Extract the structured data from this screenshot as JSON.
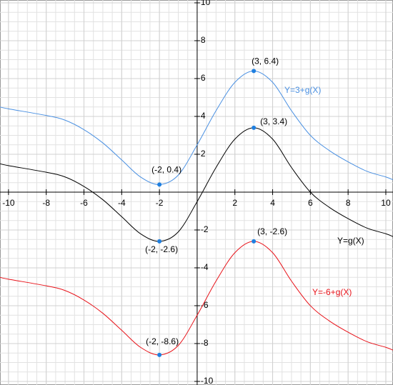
{
  "chart_data": {
    "type": "line",
    "xlim": [
      -10.45,
      10.38
    ],
    "ylim": [
      -10.19,
      10.15
    ],
    "xticks": [
      -10,
      -8,
      -6,
      -4,
      -2,
      2,
      4,
      6,
      8,
      10
    ],
    "yticks": [
      -10,
      -8,
      -6,
      -4,
      -2,
      2,
      4,
      6,
      8,
      10
    ],
    "grid": true,
    "point_color": "#1e7fe0",
    "series": [
      {
        "name": "Y=3+g(X)",
        "color": "#4a90e2",
        "x": [
          -10.45,
          -10,
          -8,
          -7,
          -6,
          -5,
          -4,
          -3,
          -2,
          -1,
          0,
          1,
          2,
          3,
          4,
          5,
          6,
          7,
          8,
          9,
          10,
          10.38
        ],
        "values": [
          4.5,
          4.4,
          4.05,
          3.8,
          3.3,
          2.6,
          1.7,
          0.8,
          0.4,
          0.9,
          2.5,
          4.3,
          5.8,
          6.4,
          5.8,
          4.3,
          3.0,
          2.2,
          1.6,
          1.1,
          0.8,
          0.65
        ],
        "points": {
          "x": [
            -2,
            3
          ],
          "values": [
            0.4,
            6.4
          ],
          "labels": [
            "(-2, 0.4)",
            "(3, 6.4)"
          ]
        }
      },
      {
        "name": "Y=g(X)",
        "color": "#000000",
        "x": [
          -10.45,
          -10,
          -8,
          -7,
          -6,
          -5,
          -4,
          -3,
          -2,
          -1,
          0,
          1,
          2,
          3,
          4,
          5,
          6,
          7,
          8,
          9,
          10,
          10.38
        ],
        "values": [
          1.5,
          1.4,
          1.05,
          0.8,
          0.3,
          -0.4,
          -1.3,
          -2.2,
          -2.6,
          -2.1,
          -0.5,
          1.3,
          2.8,
          3.4,
          2.8,
          1.3,
          0.0,
          -0.8,
          -1.4,
          -1.9,
          -2.2,
          -2.35
        ],
        "points": {
          "x": [
            -2,
            3
          ],
          "values": [
            -2.6,
            3.4
          ],
          "labels": [
            "(-2, -2.6)",
            "(3, 3.4)"
          ]
        }
      },
      {
        "name": "Y=-6+g(X)",
        "color": "#e8131a",
        "x": [
          -10.45,
          -10,
          -8,
          -7,
          -6,
          -5,
          -4,
          -3,
          -2,
          -1,
          0,
          1,
          2,
          3,
          4,
          5,
          6,
          7,
          8,
          9,
          10,
          10.38
        ],
        "values": [
          -4.5,
          -4.6,
          -4.95,
          -5.2,
          -5.7,
          -6.4,
          -7.3,
          -8.2,
          -8.6,
          -8.1,
          -6.5,
          -4.7,
          -3.2,
          -2.6,
          -3.2,
          -4.7,
          -6.0,
          -6.8,
          -7.4,
          -7.9,
          -8.2,
          -8.35
        ],
        "points": {
          "x": [
            -2,
            3
          ],
          "values": [
            -8.6,
            -2.6
          ],
          "labels": [
            "(-2, -8.6)",
            "(3, -2.6)"
          ]
        }
      }
    ]
  }
}
